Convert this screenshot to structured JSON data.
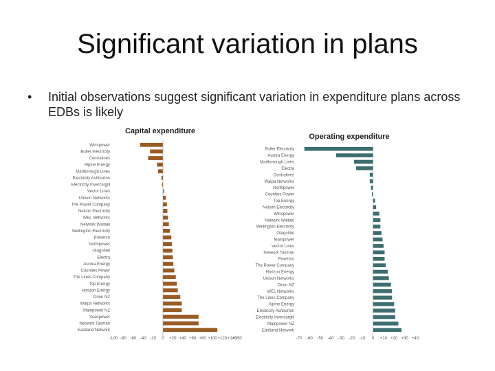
{
  "slide": {
    "title": "Significant variation in plans",
    "bullet_symbol": "•",
    "bullet_text": "Initial observations suggest significant variation in expenditure plans across EDBs is likely"
  },
  "chart_data": [
    {
      "type": "bar",
      "orientation": "horizontal",
      "title": "Capital expenditure",
      "color": "#9A5B24",
      "categories": [
        "Wlnspower",
        "Buller Electricity",
        "Centralines",
        "Alpine Energy",
        "Marlborough Lines",
        "Electricity Ashburton",
        "Electricity Invercargill",
        "Vector Lines",
        "Unison Networks",
        "The Power Company",
        "Nelson Electricity",
        "WEL Networks",
        "Network Waitaki",
        "Wellington Electricity",
        "Powerco",
        "Northpower",
        "OtagoNet",
        "Electra",
        "Aurora Energy",
        "Counties Power",
        "The Lines Company",
        "Top Energy",
        "Horizon Energy",
        "Orion NZ",
        "Waipa Networks",
        "Mainpower NZ",
        "Scanpower",
        "Network Tasman",
        "Eastland Network"
      ],
      "values": [
        -46,
        -26,
        -30,
        -12,
        -10,
        -3,
        -2,
        2,
        6,
        8,
        9,
        10,
        12,
        14,
        17,
        18,
        19,
        20,
        21,
        23,
        26,
        28,
        30,
        35,
        38,
        38,
        72,
        72,
        110
      ],
      "xlim": [
        -100,
        150
      ],
      "x_ticks": [
        "-100",
        "-80",
        "-60",
        "-40",
        "-20",
        "0",
        "+20",
        "+40",
        "+60",
        "+80",
        "+100",
        "+120",
        "+140",
        "+150"
      ],
      "x_tick_values": [
        -100,
        -80,
        -60,
        -40,
        -20,
        0,
        20,
        40,
        60,
        80,
        100,
        120,
        140,
        150
      ]
    },
    {
      "type": "bar",
      "orientation": "horizontal",
      "title": "Operating expenditure",
      "color": "#3C6E71",
      "categories": [
        "Buller Electricity",
        "Aurora Energy",
        "Marlborough Lines",
        "Electra",
        "Centralines",
        "Waipa Networks",
        "Northpower",
        "Counties Power",
        "Top Energy",
        "Nelson Electricity",
        "Wlnspower",
        "Network Waitaki",
        "Wellington Electricity",
        "OtagoNet",
        "Mainpower",
        "Vector Lines",
        "Network Tasman",
        "Powerco",
        "The Power Company",
        "Horizon Energy",
        "Unison Networks",
        "Orion NZ",
        "WEL Networks",
        "The Lines Company",
        "Alpine Energy",
        "Electricity Ashburton",
        "Electricity Invercargill",
        "Mainpower NZ",
        "Eastland Network"
      ],
      "values": [
        -65,
        -35,
        -18,
        -16,
        -3,
        -3,
        -2,
        -1,
        2,
        3,
        6,
        7,
        7,
        8,
        9,
        10,
        11,
        11,
        12,
        14,
        15,
        17,
        18,
        18,
        20,
        21,
        21,
        24,
        27
      ],
      "xlim": [
        -70,
        40
      ],
      "x_ticks": [
        "-70",
        "-60",
        "-50",
        "-40",
        "-30",
        "-20",
        "-10",
        "0",
        "+10",
        "+20",
        "+30",
        "+40"
      ],
      "x_tick_values": [
        -70,
        -60,
        -50,
        -40,
        -30,
        -20,
        -10,
        0,
        10,
        20,
        30,
        40
      ]
    }
  ]
}
